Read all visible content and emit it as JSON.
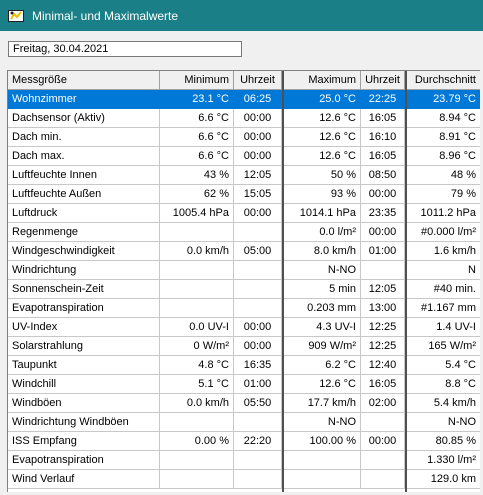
{
  "window": {
    "title": "Minimal- und Maximalwerte"
  },
  "date": "Freitag, 30.04.2021",
  "columns": [
    "Messgröße",
    "Minimum",
    "Uhrzeit",
    "Maximum",
    "Uhrzeit",
    "Durchschnitt"
  ],
  "selected_row": 0,
  "rows": [
    [
      "Wohnzimmer",
      "23.1 °C",
      "06:25",
      "25.0 °C",
      "22:25",
      "23.79 °C"
    ],
    [
      "Dachsensor (Aktiv)",
      "6.6 °C",
      "00:00",
      "12.6 °C",
      "16:05",
      "8.94 °C"
    ],
    [
      "Dach min.",
      "6.6 °C",
      "00:00",
      "12.6 °C",
      "16:10",
      "8.91 °C"
    ],
    [
      "Dach max.",
      "6.6 °C",
      "00:00",
      "12.6 °C",
      "16:05",
      "8.96 °C"
    ],
    [
      "Luftfeuchte Innen",
      "43 %",
      "12:05",
      "50 %",
      "08:50",
      "48 %"
    ],
    [
      "Luftfeuchte Außen",
      "62 %",
      "15:05",
      "93 %",
      "00:00",
      "79 %"
    ],
    [
      "Luftdruck",
      "1005.4 hPa",
      "00:00",
      "1014.1 hPa",
      "23:35",
      "1011.2 hPa"
    ],
    [
      "Regenmenge",
      "",
      "",
      "0.0 l/m²",
      "00:00",
      "#0.000 l/m²"
    ],
    [
      "Windgeschwindigkeit",
      "0.0 km/h",
      "05:00",
      "8.0 km/h",
      "01:00",
      "1.6 km/h"
    ],
    [
      "Windrichtung",
      "",
      "",
      "N-NO",
      "",
      "N"
    ],
    [
      "Sonnenschein-Zeit",
      "",
      "",
      "5 min",
      "12:05",
      "#40 min."
    ],
    [
      "Evapotranspiration",
      "",
      "",
      "0.203 mm",
      "13:00",
      "#1.167 mm"
    ],
    [
      "UV-Index",
      "0.0 UV-I",
      "00:00",
      "4.3 UV-I",
      "12:25",
      "1.4 UV-I"
    ],
    [
      "Solarstrahlung",
      "0 W/m²",
      "00:00",
      "909 W/m²",
      "12:25",
      "165 W/m²"
    ],
    [
      "Taupunkt",
      "4.8 °C",
      "16:35",
      "6.2 °C",
      "12:40",
      "5.4 °C"
    ],
    [
      "Windchill",
      "5.1 °C",
      "01:00",
      "12.6 °C",
      "16:05",
      "8.8 °C"
    ],
    [
      "Windböen",
      "0.0 km/h",
      "05:50",
      "17.7 km/h",
      "02:00",
      "5.4 km/h"
    ],
    [
      "Windrichtung Windböen",
      "",
      "",
      "N-NO",
      "",
      "N-NO"
    ],
    [
      "ISS Empfang",
      "0.00 %",
      "22:20",
      "100.00 %",
      "00:00",
      "80.85 %"
    ],
    [
      "Evapotranspiration",
      "",
      "",
      "",
      "",
      "1.330 l/m²"
    ],
    [
      "Wind Verlauf",
      "",
      "",
      "",
      "",
      "129.0 km"
    ]
  ]
}
